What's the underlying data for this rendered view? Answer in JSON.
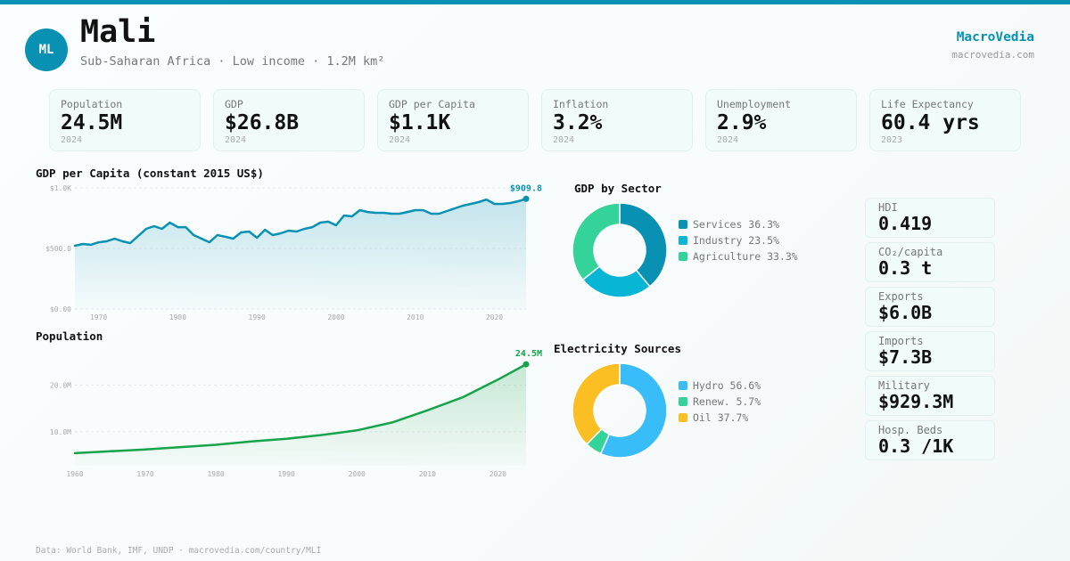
{
  "header": {
    "avatar_initials": "ML",
    "country": "Mali",
    "subtitle": "Sub-Saharan Africa · Low income · 1.2M km²",
    "brand": "MacroVedia",
    "brand_url": "macrovedia.com"
  },
  "colors": {
    "accent": "#0891b2",
    "population_green": "#16a34a"
  },
  "kpis": [
    {
      "label": "Population",
      "value": "24.5M",
      "year": "2024"
    },
    {
      "label": "GDP",
      "value": "$26.8B",
      "year": "2024"
    },
    {
      "label": "GDP per Capita",
      "value": "$1.1K",
      "year": "2024"
    },
    {
      "label": "Inflation",
      "value": "3.2%",
      "year": "2024"
    },
    {
      "label": "Unemployment",
      "value": "2.9%",
      "year": "2024"
    },
    {
      "label": "Life Expectancy",
      "value": "60.4 yrs",
      "year": "2023"
    }
  ],
  "side_stats": [
    {
      "label": "HDI",
      "value": "0.419"
    },
    {
      "label": "CO₂/capita",
      "value": "0.3 t"
    },
    {
      "label": "Exports",
      "value": "$6.0B"
    },
    {
      "label": "Imports",
      "value": "$7.3B"
    },
    {
      "label": "Military",
      "value": "$929.3M"
    },
    {
      "label": "Hosp. Beds",
      "value": "0.3 /1K"
    }
  ],
  "footer": "Data: World Bank, IMF, UNDP · macrovedia.com/country/MLI",
  "chart_data": [
    {
      "id": "gdp_per_capita",
      "type": "area",
      "title": "GDP per Capita (constant 2015 US$)",
      "color": "#0891b2",
      "ylim": [
        0,
        1000
      ],
      "yticks": [
        {
          "value": 0,
          "label": "$0.00"
        },
        {
          "value": 500,
          "label": "$500.0"
        },
        {
          "value": 1000,
          "label": "$1.0K"
        }
      ],
      "xlim": [
        1967,
        2024
      ],
      "xticks": [
        1970,
        1980,
        1990,
        2000,
        2010,
        2020
      ],
      "grid": true,
      "end_label": "$909.8",
      "x": [
        1967,
        1968,
        1969,
        1970,
        1971,
        1972,
        1973,
        1974,
        1975,
        1976,
        1977,
        1978,
        1979,
        1980,
        1981,
        1982,
        1983,
        1984,
        1985,
        1986,
        1987,
        1988,
        1989,
        1990,
        1991,
        1992,
        1993,
        1994,
        1995,
        1996,
        1997,
        1998,
        1999,
        2000,
        2001,
        2002,
        2003,
        2004,
        2005,
        2006,
        2007,
        2008,
        2009,
        2010,
        2011,
        2012,
        2013,
        2014,
        2015,
        2016,
        2017,
        2018,
        2019,
        2020,
        2021,
        2022,
        2023,
        2024
      ],
      "values": [
        522,
        537,
        530,
        551,
        559,
        581,
        559,
        544,
        603,
        662,
        684,
        662,
        713,
        676,
        676,
        610,
        581,
        551,
        610,
        596,
        581,
        632,
        640,
        588,
        654,
        610,
        625,
        647,
        640,
        662,
        676,
        713,
        721,
        691,
        772,
        765,
        816,
        801,
        794,
        794,
        787,
        787,
        801,
        816,
        816,
        787,
        787,
        809,
        831,
        853,
        868,
        882,
        904,
        868,
        868,
        875,
        890,
        909.8
      ]
    },
    {
      "id": "population",
      "type": "area",
      "title": "Population",
      "color": "#16a34a",
      "ylim": [
        2.7,
        27
      ],
      "yticks": [
        {
          "value": 10,
          "label": "10.0M"
        },
        {
          "value": 20,
          "label": "20.0M"
        }
      ],
      "xlim": [
        1960,
        2024
      ],
      "xticks": [
        1960,
        1970,
        1980,
        1990,
        2000,
        2010,
        2020
      ],
      "grid": true,
      "end_label": "24.5M",
      "x": [
        1960,
        1965,
        1970,
        1975,
        1980,
        1985,
        1990,
        1995,
        2000,
        2005,
        2010,
        2015,
        2020,
        2024
      ],
      "values": [
        5.4,
        5.8,
        6.2,
        6.7,
        7.2,
        7.9,
        8.5,
        9.3,
        10.3,
        12.0,
        14.6,
        17.4,
        21.2,
        24.5
      ]
    },
    {
      "id": "gdp_by_sector",
      "type": "pie",
      "title": "GDP by Sector",
      "slices": [
        {
          "label": "Services",
          "value": 36.3,
          "display": "Services 36.3%",
          "color": "#0891b2"
        },
        {
          "label": "Industry",
          "value": 23.5,
          "display": "Industry 23.5%",
          "color": "#06b6d4"
        },
        {
          "label": "Agriculture",
          "value": 33.3,
          "display": "Agriculture 33.3%",
          "color": "#34d399"
        }
      ]
    },
    {
      "id": "electricity_sources",
      "type": "pie",
      "title": "Electricity Sources",
      "slices": [
        {
          "label": "Hydro",
          "value": 56.6,
          "display": "Hydro 56.6%",
          "color": "#38bdf8"
        },
        {
          "label": "Renew.",
          "value": 5.7,
          "display": "Renew. 5.7%",
          "color": "#34d399"
        },
        {
          "label": "Oil",
          "value": 37.7,
          "display": "Oil 37.7%",
          "color": "#fbbf24"
        }
      ]
    }
  ]
}
